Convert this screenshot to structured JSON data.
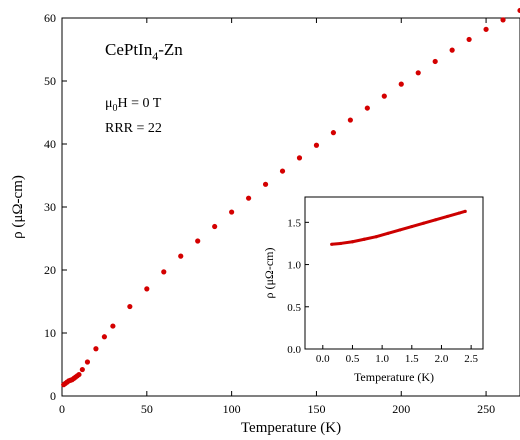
{
  "chart_data": [
    {
      "type": "scatter",
      "title": "CePtIn4-Zn",
      "annotations": [
        "μ0H = 0 T",
        "RRR = 22"
      ],
      "xlabel": "Temperature (K)",
      "ylabel": "ρ (μΩ-cm)",
      "xlim": [
        0,
        270
      ],
      "ylim": [
        0,
        60
      ],
      "xticks": [
        "0",
        "50",
        "100",
        "150",
        "200",
        "250"
      ],
      "yticks": [
        "0",
        "10",
        "20",
        "30",
        "40",
        "50",
        "60"
      ],
      "color": "#d40000",
      "series": [
        {
          "x": [
            1,
            2,
            3,
            4,
            5,
            6,
            7,
            8,
            9,
            10,
            12,
            15,
            20,
            25,
            30,
            40,
            50,
            60,
            70,
            80,
            90,
            100,
            110,
            120,
            130,
            140,
            150,
            160,
            170,
            180,
            190,
            200,
            210,
            220,
            230,
            240,
            250,
            260,
            270
          ],
          "y": [
            1.8,
            2.0,
            2.2,
            2.4,
            2.5,
            2.6,
            2.8,
            3.0,
            3.2,
            3.4,
            4.2,
            5.4,
            7.5,
            9.4,
            11.1,
            14.2,
            17.0,
            19.7,
            22.2,
            24.6,
            26.9,
            29.2,
            31.4,
            33.6,
            35.7,
            37.8,
            39.8,
            41.8,
            43.8,
            45.7,
            47.6,
            49.5,
            51.3,
            53.1,
            54.9,
            56.6,
            58.2,
            59.7,
            61.2
          ]
        }
      ]
    },
    {
      "type": "line",
      "xlabel": "Temperature (K)",
      "ylabel": "ρ (μΩ-cm)",
      "xlim": [
        -0.3,
        2.7
      ],
      "ylim": [
        0,
        1.8
      ],
      "xticks": [
        "0.0",
        "0.5",
        "1.0",
        "1.5",
        "2.0",
        "2.5"
      ],
      "yticks": [
        "0.0",
        "0.5",
        "1.0",
        "1.5"
      ],
      "color": "#cc0000",
      "series": [
        {
          "x": [
            0.15,
            0.3,
            0.5,
            0.7,
            0.9,
            1.1,
            1.3,
            1.5,
            1.7,
            1.9,
            2.1,
            2.3,
            2.4
          ],
          "y": [
            1.24,
            1.25,
            1.27,
            1.3,
            1.33,
            1.37,
            1.41,
            1.45,
            1.49,
            1.53,
            1.57,
            1.61,
            1.63
          ]
        }
      ]
    }
  ]
}
